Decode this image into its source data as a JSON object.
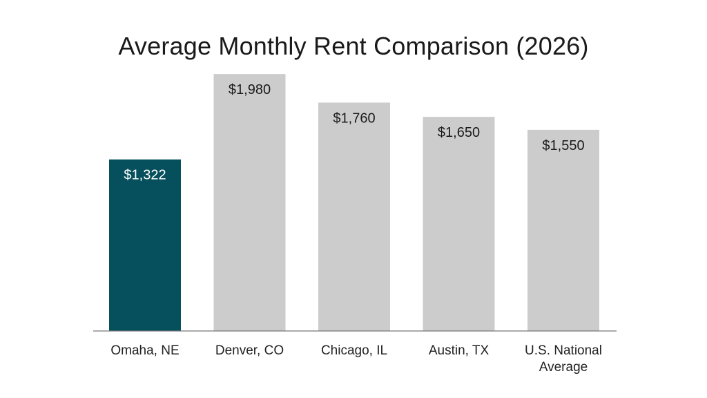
{
  "chart_data": {
    "type": "bar",
    "title": "Average Monthly Rent Comparison (2026)",
    "categories": [
      "Omaha, NE",
      "Denver, CO",
      "Chicago, IL",
      "Austin, TX",
      "U.S. National Average"
    ],
    "category_lines": [
      [
        "Omaha, NE"
      ],
      [
        "Denver, CO"
      ],
      [
        "Chicago, IL"
      ],
      [
        "Austin, TX"
      ],
      [
        "U.S. National",
        "Average"
      ]
    ],
    "values": [
      1322,
      1980,
      1760,
      1650,
      1550
    ],
    "value_labels": [
      "$1,322",
      "$1,980",
      "$1,760",
      "$1,650",
      "$1,550"
    ],
    "highlight_index": 0,
    "colors": {
      "highlight": "#064f5c",
      "default": "#cccccc",
      "highlight_text": "#ffffff",
      "default_text": "#1a1a1a",
      "axis": "#777777"
    },
    "ylim": [
      0,
      2050
    ],
    "xlabel": "",
    "ylabel": "",
    "grid": false,
    "legend": "none"
  }
}
